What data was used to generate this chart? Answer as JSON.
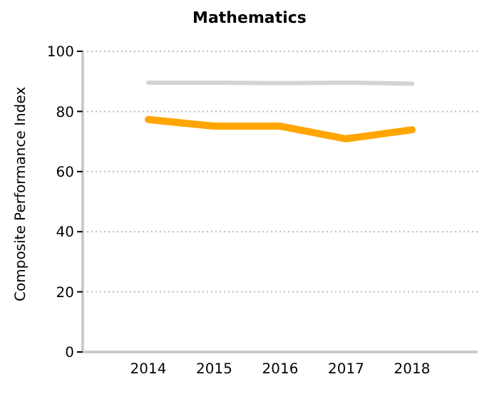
{
  "chart_data": {
    "type": "line",
    "title": "Mathematics",
    "ylabel": "Composite Performance Index",
    "categories": [
      "2014",
      "2015",
      "2016",
      "2017",
      "2018"
    ],
    "series": [
      {
        "color": "#d3d3d3",
        "values": [
          89.6,
          89.6,
          89.4,
          89.6,
          89.2
        ]
      },
      {
        "color": "#ffa500",
        "values": [
          77.3,
          75.1,
          75.1,
          70.9,
          73.9
        ]
      }
    ],
    "ylim": [
      0,
      100
    ],
    "yticks": [
      0,
      20,
      40,
      60,
      80,
      100
    ],
    "grid": "y",
    "legend": false,
    "marker": "none",
    "line_style": "solid"
  }
}
